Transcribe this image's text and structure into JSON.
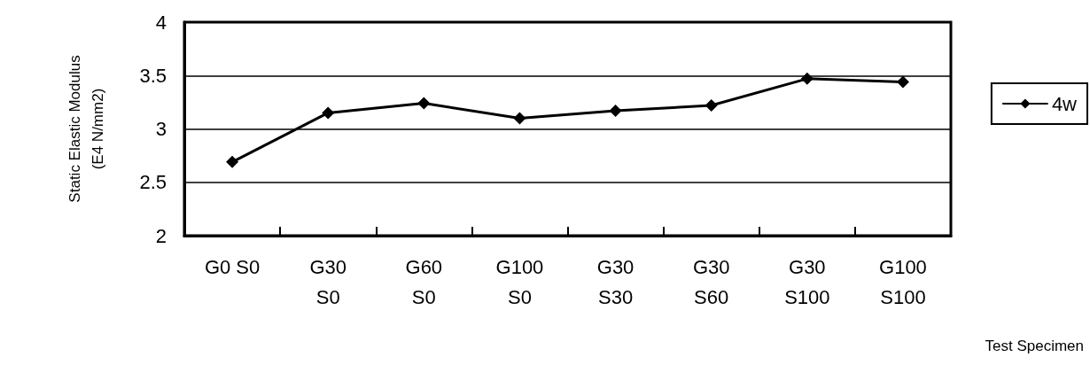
{
  "chart_data": {
    "type": "line",
    "xlabel": "Test Specimen",
    "ylabel": "Static Elastic Modulus\n(E4 N/mm2)",
    "categories": [
      "G0 S0",
      "G30\nS0",
      "G60\nS0",
      "G100\nS0",
      "G30\nS30",
      "G30\nS60",
      "G30\nS100",
      "G100\nS100"
    ],
    "series": [
      {
        "name": "4w",
        "color": "#000000",
        "values": [
          2.69,
          3.15,
          3.24,
          3.1,
          3.17,
          3.22,
          3.47,
          3.44
        ]
      }
    ],
    "ylim": [
      2,
      4
    ],
    "yticks": [
      2,
      2.5,
      3,
      3.5,
      4
    ],
    "grid": "y",
    "legend": "right",
    "marker": "diamond",
    "line_style": "solid"
  }
}
